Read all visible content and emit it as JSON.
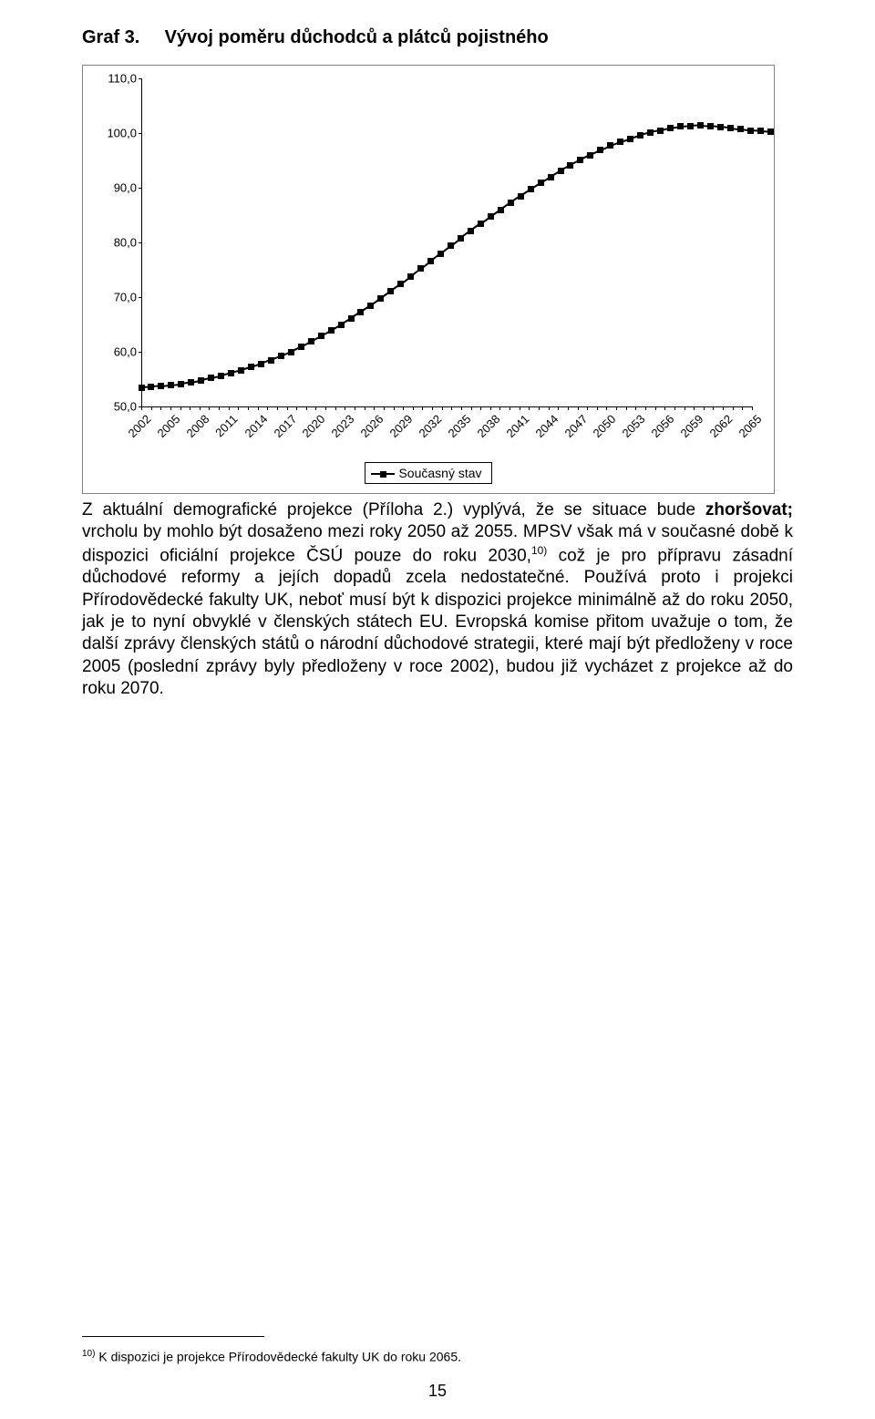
{
  "title_label": "Graf 3.",
  "title_text": "Vývoj poměru důchodců a plátců pojistného",
  "chart": {
    "type": "line",
    "ylim": [
      50,
      110
    ],
    "ytick_step": 10,
    "yticks": [
      "50,0",
      "60,0",
      "70,0",
      "80,0",
      "90,0",
      "100,0",
      "110,0"
    ],
    "x_labels": [
      "2002",
      "2005",
      "2008",
      "2011",
      "2014",
      "2017",
      "2020",
      "2023",
      "2026",
      "2029",
      "2032",
      "2035",
      "2038",
      "2041",
      "2044",
      "2047",
      "2050",
      "2053",
      "2056",
      "2059",
      "2062",
      "2065"
    ],
    "x_count_total": 64,
    "values": [
      53.5,
      53.6,
      53.7,
      53.9,
      54.1,
      54.4,
      54.8,
      55.2,
      55.6,
      56.1,
      56.6,
      57.2,
      57.8,
      58.5,
      59.2,
      60.0,
      60.9,
      61.9,
      62.9,
      63.9,
      65.0,
      66.1,
      67.3,
      68.5,
      69.8,
      71.1,
      72.4,
      73.8,
      75.2,
      76.6,
      78.0,
      79.4,
      80.8,
      82.1,
      83.4,
      84.7,
      86.0,
      87.3,
      88.5,
      89.7,
      90.9,
      92.0,
      93.1,
      94.1,
      95.1,
      96.0,
      96.9,
      97.7,
      98.4,
      99.0,
      99.6,
      100.1,
      100.5,
      100.9,
      101.2,
      101.3,
      101.4,
      101.3,
      101.1,
      100.9,
      100.7,
      100.5,
      100.4,
      100.3
    ],
    "marker_color": "#000000",
    "line_color": "#000000",
    "background_color": "#ffffff",
    "border_color": "#808080",
    "legend_label": "Současný stav"
  },
  "body_lead": "Z aktuální demografické projekce (Příloha 2.) vyplývá, že se situace bude ",
  "body_bold": "zhoršovat;",
  "body_rest_1": " vrcholu by mohlo být dosaženo mezi roky 2050 až 2055. MPSV však má v současné době k dispozici oficiální projekce ČSÚ pouze do roku 2030,",
  "body_sup": "10)",
  "body_rest_2": " což je pro přípravu zásadní důchodové reformy a jejích dopadů zcela nedostatečné. Používá proto i projekci Přírodovědecké fakulty UK, neboť musí být k dispozici projekce minimálně až do roku 2050, jak je to nyní obvyklé v členských státech EU. Evropská komise přitom uvažuje o tom, že další zprávy členských států o národní důchodové strategii, které mají být předloženy v roce 2005 (poslední zprávy byly předloženy v roce 2002), budou již vycházet z projekce až do roku 2070.",
  "footnote_sup": "10)",
  "footnote_text": " K dispozici je projekce Přírodovědecké fakulty UK do roku 2065.",
  "page_number": "15"
}
